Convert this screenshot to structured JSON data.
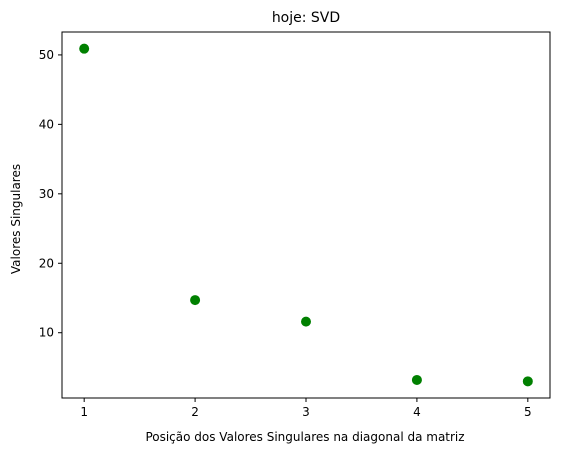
{
  "chart_data": {
    "type": "scatter",
    "title": "hoje: SVD",
    "xlabel": "Posição dos Valores Singulares na diagonal da matriz",
    "ylabel": "Valores Singulares",
    "x": [
      1,
      2,
      3,
      4,
      5
    ],
    "y": [
      50.9,
      14.7,
      11.6,
      3.2,
      3.0
    ],
    "xlim": [
      0.8,
      5.2
    ],
    "ylim": [
      0.6,
      53.3
    ],
    "xticks": [
      1,
      2,
      3,
      4,
      5
    ],
    "yticks": [
      10,
      20,
      30,
      40,
      50
    ],
    "grid": false,
    "marker_color": "#008000"
  }
}
